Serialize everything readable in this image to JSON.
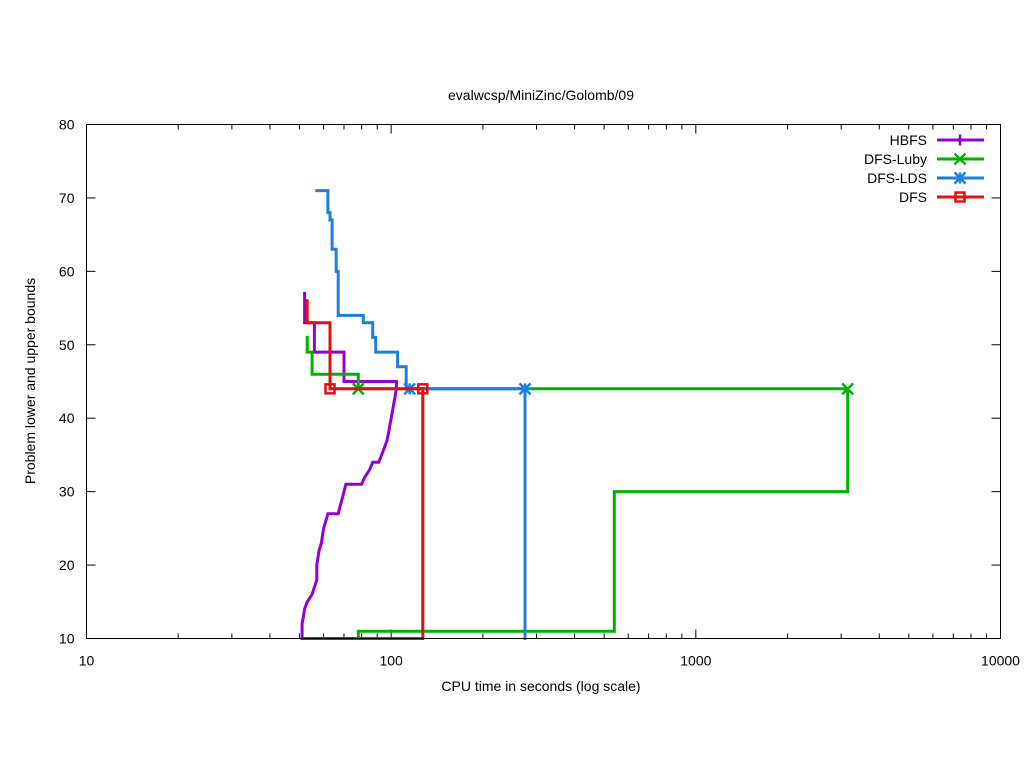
{
  "chart_data": {
    "type": "line",
    "title": "evalwcsp/MiniZinc/Golomb/09",
    "xlabel": "CPU time in seconds (log scale)",
    "ylabel": "Problem lower and upper bounds",
    "xscale": "log",
    "xlim": [
      10,
      10000
    ],
    "ylim": [
      10,
      80
    ],
    "xticks": [
      10,
      100,
      1000,
      10000
    ],
    "yticks": [
      10,
      20,
      30,
      40,
      50,
      60,
      70,
      80
    ],
    "grid": false,
    "legend_position": "top-right",
    "series": [
      {
        "name": "HBFS",
        "color": "#9400d3",
        "marker": "plus",
        "lower_bound": [
          [
            51,
            10
          ],
          [
            51,
            12
          ],
          [
            51.5,
            13
          ],
          [
            52,
            14
          ],
          [
            53,
            15
          ],
          [
            55,
            16
          ],
          [
            56,
            17
          ],
          [
            57,
            18
          ],
          [
            57,
            20
          ],
          [
            58,
            22
          ],
          [
            59,
            23
          ],
          [
            60,
            25
          ],
          [
            61,
            26
          ],
          [
            62,
            27
          ],
          [
            67,
            27
          ],
          [
            68,
            28
          ],
          [
            69,
            29
          ],
          [
            71,
            31
          ],
          [
            80,
            31
          ],
          [
            82,
            32
          ],
          [
            85,
            33
          ],
          [
            87,
            34
          ],
          [
            91,
            34
          ],
          [
            93,
            35
          ],
          [
            95,
            36
          ],
          [
            97,
            37
          ],
          [
            98,
            38
          ],
          [
            99,
            39
          ],
          [
            100,
            40
          ],
          [
            101,
            41
          ],
          [
            102,
            42
          ],
          [
            103,
            43
          ],
          [
            104,
            44
          ],
          [
            105,
            44
          ]
        ],
        "upper_bound": [
          [
            52,
            57
          ],
          [
            52,
            53
          ],
          [
            56,
            53
          ],
          [
            56,
            49
          ],
          [
            70,
            49
          ],
          [
            70,
            45
          ],
          [
            104,
            45
          ],
          [
            104,
            44
          ],
          [
            105,
            44
          ]
        ],
        "markers": []
      },
      {
        "name": "DFS-Luby",
        "color": "#00b300",
        "marker": "cross",
        "lower_bound": [
          [
            78,
            10
          ],
          [
            78,
            11
          ],
          [
            540,
            11
          ],
          [
            540,
            30
          ],
          [
            3150,
            30
          ],
          [
            3150,
            44
          ]
        ],
        "upper_bound": [
          [
            53,
            51
          ],
          [
            53,
            49
          ],
          [
            55,
            49
          ],
          [
            55,
            46
          ],
          [
            78,
            46
          ],
          [
            78,
            44
          ],
          [
            3150,
            44
          ]
        ],
        "markers": [
          [
            78,
            44
          ],
          [
            3150,
            44
          ]
        ]
      },
      {
        "name": "DFS-LDS",
        "color": "#1b7fe0",
        "marker": "asterisk",
        "lower_bound": [
          [
            275,
            10
          ],
          [
            275,
            44
          ]
        ],
        "upper_bound": [
          [
            57,
            71
          ],
          [
            62,
            71
          ],
          [
            62,
            68
          ],
          [
            63,
            68
          ],
          [
            63,
            67
          ],
          [
            64,
            67
          ],
          [
            64,
            63
          ],
          [
            66,
            63
          ],
          [
            66,
            60
          ],
          [
            67,
            60
          ],
          [
            67,
            54
          ],
          [
            81,
            54
          ],
          [
            81,
            53
          ],
          [
            87,
            53
          ],
          [
            87,
            51
          ],
          [
            89,
            51
          ],
          [
            89,
            49
          ],
          [
            105,
            49
          ],
          [
            105,
            47
          ],
          [
            112,
            47
          ],
          [
            112,
            44
          ],
          [
            275,
            44
          ]
        ],
        "markers": [
          [
            115,
            44
          ],
          [
            275,
            44
          ]
        ]
      },
      {
        "name": "DFS",
        "color": "#e01010",
        "marker": "square",
        "lower_bound": [
          [
            52,
            10
          ],
          [
            127,
            10
          ],
          [
            127,
            44
          ]
        ],
        "upper_bound": [
          [
            53,
            56
          ],
          [
            53,
            53
          ],
          [
            63,
            53
          ],
          [
            63,
            44
          ],
          [
            127,
            44
          ]
        ],
        "markers": [
          [
            63,
            44
          ],
          [
            127,
            44
          ]
        ]
      }
    ]
  }
}
